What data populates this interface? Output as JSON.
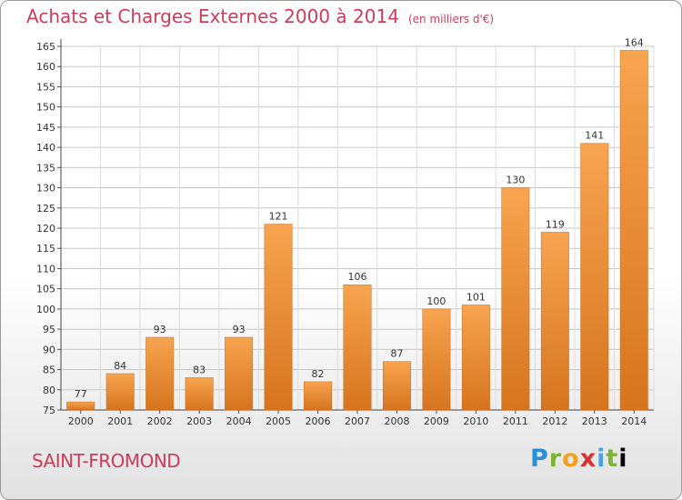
{
  "chart_data": {
    "type": "bar",
    "title": "Achats et Charges Externes 2000 à 2014",
    "subtitle": "(en milliers d'€)",
    "categories": [
      "2000",
      "2001",
      "2002",
      "2003",
      "2004",
      "2005",
      "2006",
      "2007",
      "2008",
      "2009",
      "2010",
      "2011",
      "2012",
      "2013",
      "2014"
    ],
    "values": [
      77,
      84,
      93,
      83,
      93,
      121,
      82,
      106,
      87,
      100,
      101,
      130,
      119,
      141,
      164
    ],
    "ylim": [
      75,
      165
    ],
    "yticks": [
      75,
      80,
      85,
      90,
      95,
      100,
      105,
      110,
      115,
      120,
      125,
      130,
      135,
      140,
      145,
      150,
      155,
      160,
      165
    ],
    "grid": true,
    "bar_color_light": "#f7a450",
    "bar_color_dark": "#d6741f"
  },
  "footer": {
    "place": "SAINT-FROMOND",
    "logo_letters": [
      "P",
      "r",
      "o",
      "x",
      "i",
      "t",
      "i"
    ]
  },
  "colors": {
    "accent": "#cc3d5a"
  }
}
